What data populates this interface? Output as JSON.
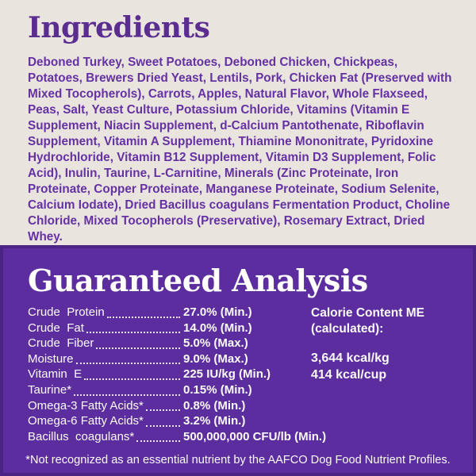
{
  "colors": {
    "bg_light": "#e9e5de",
    "bg_purple": "#5c2d9e",
    "border_purple": "#4a2384",
    "heading_purple": "#5b2d91",
    "text_purple": "#6531a3",
    "text_light": "#fcfaf7"
  },
  "ingredients": {
    "heading": "Ingredients",
    "text": "Deboned Turkey, Sweet Potatoes, Deboned Chicken, Chickpeas, Potatoes, Brewers Dried Yeast, Lentils, Pork, Chicken Fat (Preserved with Mixed Tocopherols), Carrots, Apples, Natural Flavor, Whole Flaxseed, Peas, Salt, Yeast Culture, Potassium Chloride, Vitamins (Vitamin E Supplement, Niacin Supplement, d-Calcium Pantothenate, Riboflavin Supplement, Vitamin A Supplement, Thiamine Mononitrate, Pyridoxine Hydrochloride, Vitamin B12 Supplement, Vitamin D3 Supplement, Folic Acid), Inulin, Taurine, L-Carnitine, Minerals (Zinc Proteinate, Iron Proteinate, Copper Proteinate, Manganese Proteinate, Sodium Selenite, Calcium Iodate), Dried Bacillus coagulans Fermentation Product, Choline Chloride, Mixed Tocopherols (Preservative), Rosemary Extract, Dried Whey."
  },
  "guaranteed_analysis": {
    "heading": "Guaranteed Analysis",
    "rows": [
      {
        "label": "Crude  Protein",
        "value": "27.0% (Min.)"
      },
      {
        "label": "Crude  Fat",
        "value": "14.0% (Min.)"
      },
      {
        "label": "Crude  Fiber",
        "value": "5.0% (Max.)"
      },
      {
        "label": "Moisture",
        "value": "9.0% (Max.)"
      },
      {
        "label": "Vitamin  E",
        "value": "225 IU/kg (Min.)"
      },
      {
        "label": "Taurine*",
        "value": "0.15% (Min.)"
      },
      {
        "label": "Omega-3 Fatty Acids*",
        "value": "0.8% (Min.)"
      },
      {
        "label": "Omega-6 Fatty Acids*",
        "value": "3.2% (Min.)"
      },
      {
        "label": "Bacillus  coagulans*",
        "value": "500,000,000 CFU/lb (Min.)"
      }
    ],
    "calorie": {
      "title": "Calorie Content ME (calculated):",
      "lines": [
        "3,644 kcal/kg",
        "414 kcal/cup"
      ]
    },
    "footnote": "*Not recognized as an essential nutrient by the AAFCO Dog Food Nutrient Profiles."
  }
}
